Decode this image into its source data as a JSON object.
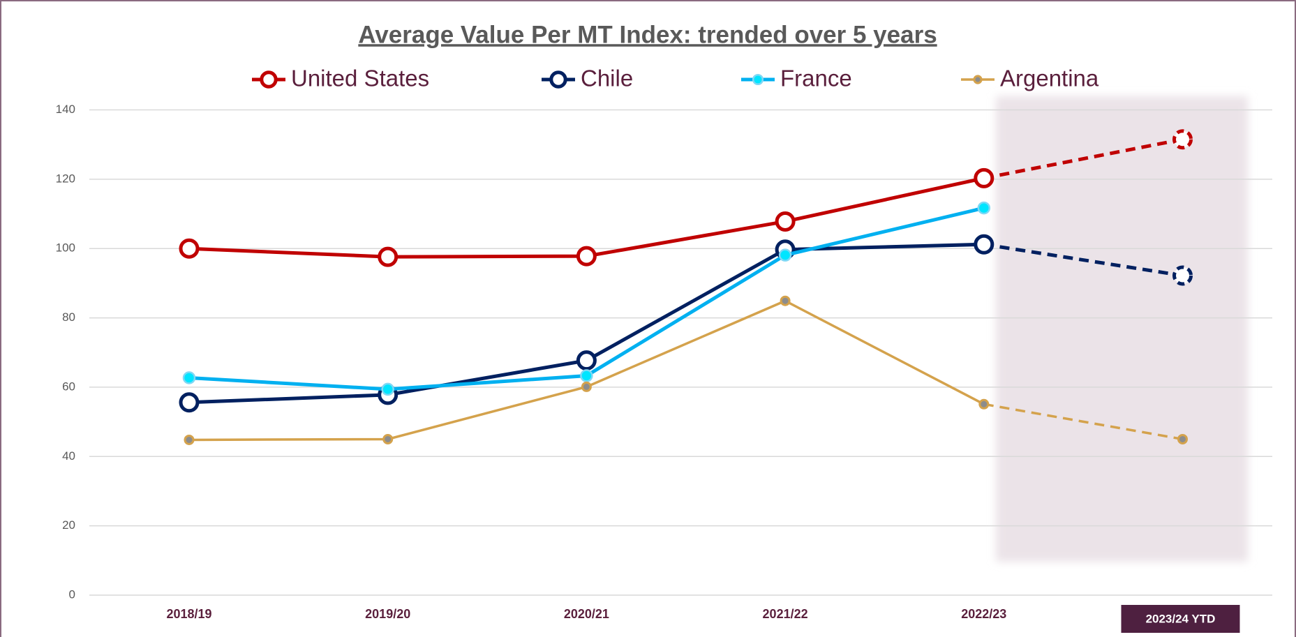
{
  "chart_data": {
    "type": "line",
    "title": "Average Value Per MT Index: trended over 5 years",
    "categories": [
      "2018/19",
      "2019/20",
      "2020/21",
      "2021/22",
      "2022/23",
      "2023/24 YTD"
    ],
    "series": [
      {
        "name": "United States",
        "color": "#c00000",
        "values": [
          100,
          97.6,
          97.8,
          107.8,
          120.3,
          131.5
        ]
      },
      {
        "name": "Chile",
        "color": "#002060",
        "values": [
          55.6,
          57.8,
          67.7,
          99.7,
          101.2,
          92.2
        ]
      },
      {
        "name": "France",
        "color": "#00b0f0",
        "values": [
          62.7,
          59.4,
          63.3,
          98.1,
          111.7,
          null
        ]
      },
      {
        "name": "Argentina",
        "color": "#d4a24c",
        "values": [
          44.8,
          45.0,
          60.1,
          84.9,
          55.1,
          45.0
        ]
      }
    ],
    "ylim": [
      0,
      140
    ],
    "yticks": [
      0,
      20,
      40,
      60,
      80,
      100,
      120,
      140
    ],
    "grid": true,
    "legend": "top"
  }
}
